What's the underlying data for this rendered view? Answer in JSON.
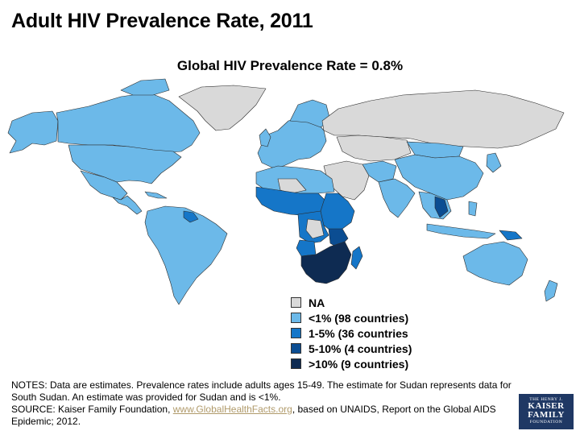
{
  "title": "Adult HIV Prevalence Rate, 2011",
  "subtitle": "Global HIV Prevalence Rate = 0.8%",
  "colors": {
    "na": "#d9d9d9",
    "lt1": "#6cb9e9",
    "one_to_five": "#1576c8",
    "five_to_ten": "#0b4d92",
    "gt10": "#0e2b52",
    "outline": "#2b2b2b"
  },
  "legend": {
    "items": [
      {
        "label": "NA",
        "color_key": "na"
      },
      {
        "label": "<1% (98 countries)",
        "color_key": "lt1"
      },
      {
        "label": "1-5% (36 countries",
        "color_key": "one_to_five"
      },
      {
        "label": "5-10% (4 countries)",
        "color_key": "five_to_ten"
      },
      {
        "label": ">10% (9 countries)",
        "color_key": "gt10"
      }
    ]
  },
  "notes": {
    "line1": "NOTES: Data are estimates. Prevalence rates include adults ages 15-49. The estimate for Sudan represents data for South Sudan. An estimate was provided for Sudan and is <1%.",
    "source_prefix": "SOURCE: Kaiser Family Foundation, ",
    "source_link": "www.GlobalHealthFacts.org",
    "source_suffix": ", based on UNAIDS, Report on the Global AIDS Epidemic; 2012."
  },
  "logo": {
    "line1": "THE HENRY J.",
    "line2a": "KAISER",
    "line2b": "FAMILY",
    "line3": "FOUNDATION"
  }
}
